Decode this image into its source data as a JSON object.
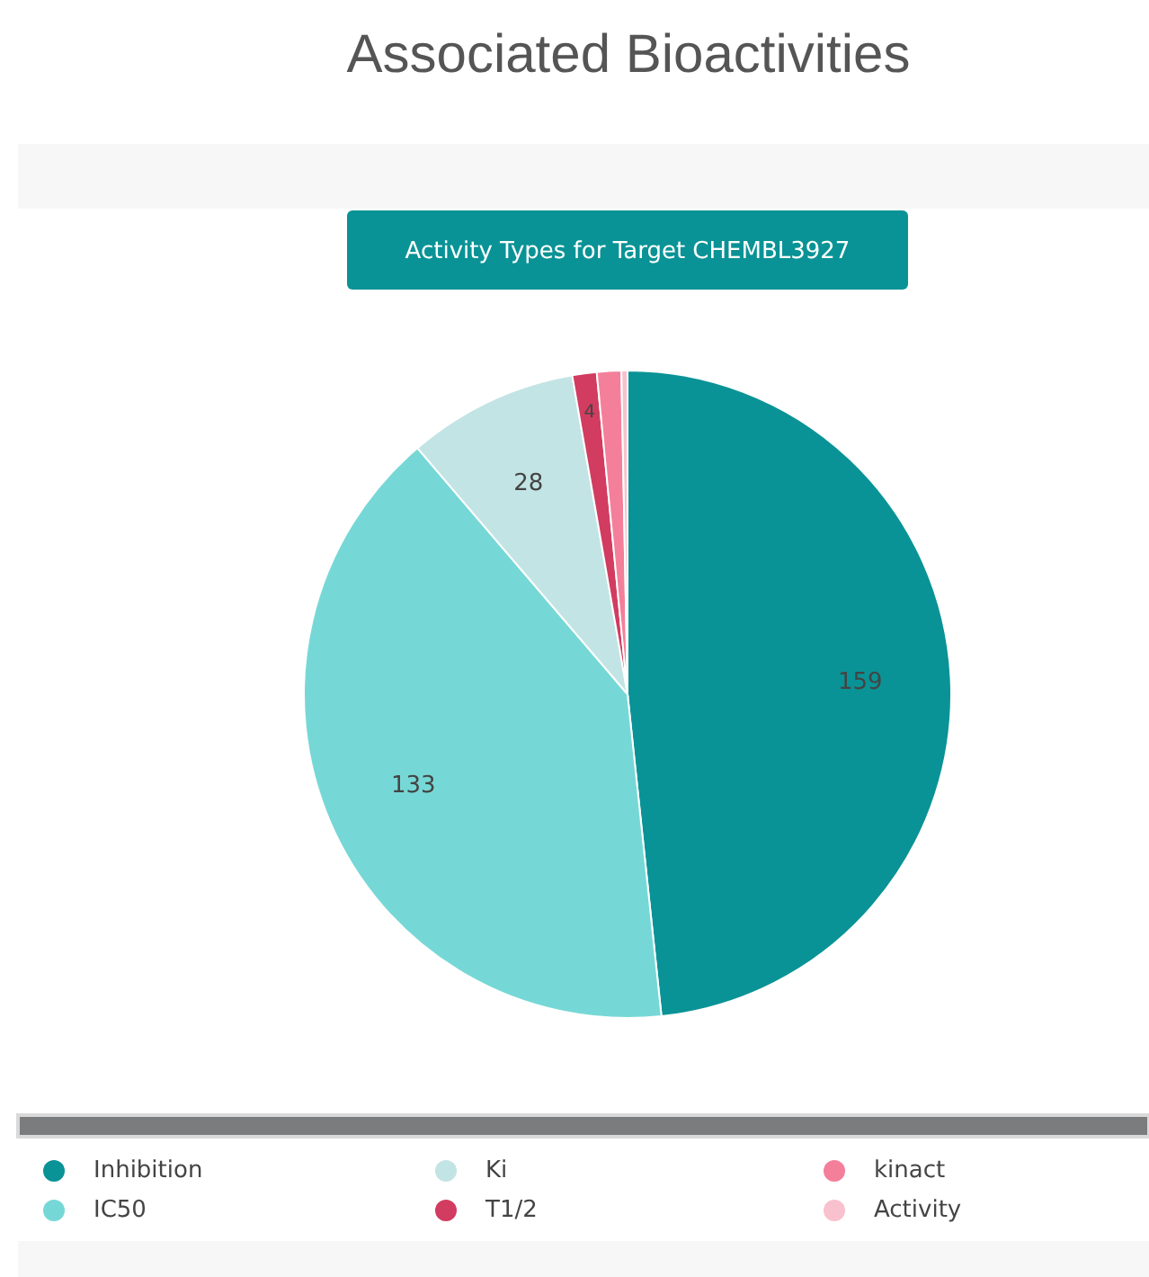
{
  "chart_data": {
    "type": "pie",
    "title": "Associated Bioactivities",
    "subtitle": "Activity Types for Target CHEMBL3927",
    "categories": [
      "Inhibition",
      "IC50",
      "Ki",
      "T1/2",
      "kinact",
      "Activity"
    ],
    "values": [
      159,
      133,
      28,
      4,
      4,
      1
    ],
    "value_labels": [
      "159",
      "133",
      "28",
      "4",
      null,
      null
    ],
    "colors": [
      "#0a9396",
      "#76d8d6",
      "#c3e4e4",
      "#d13c60",
      "#f47f9a",
      "#f9c0cd"
    ],
    "legend": "bottom"
  }
}
